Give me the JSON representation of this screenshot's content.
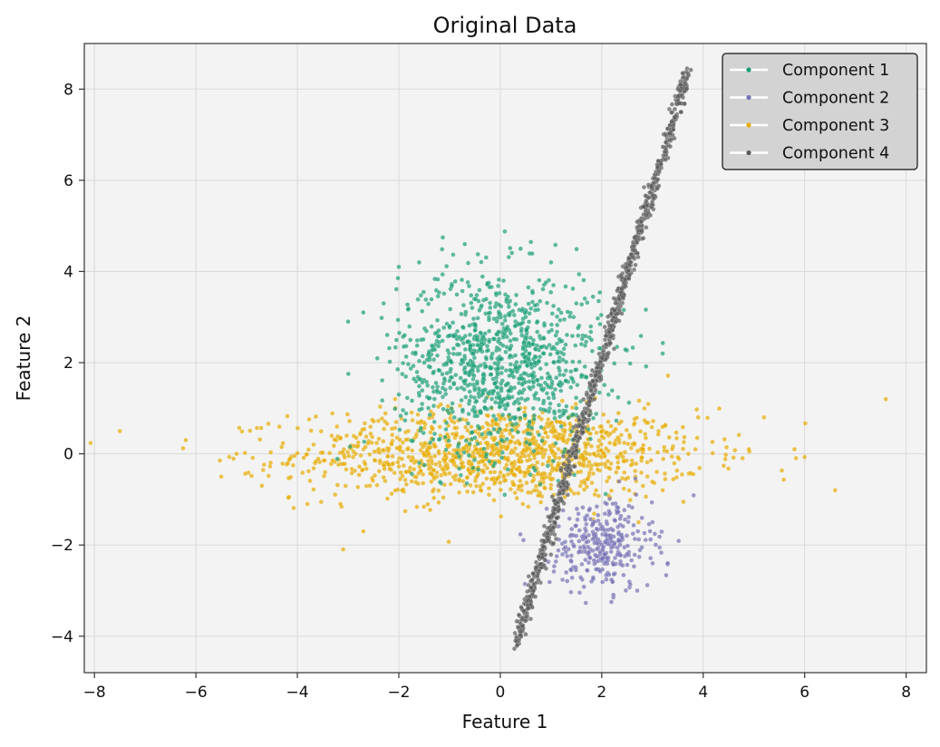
{
  "chart_data": {
    "type": "scatter",
    "title": "Original Data",
    "xlabel": "Feature 1",
    "ylabel": "Feature 2",
    "xlim": [
      -8.2,
      8.4
    ],
    "ylim": [
      -4.8,
      9.0
    ],
    "xticks": [
      -8,
      -6,
      -4,
      -2,
      0,
      2,
      4,
      6,
      8
    ],
    "yticks": [
      -4,
      -2,
      0,
      2,
      4,
      6,
      8
    ],
    "xtick_labels": [
      "−8",
      "−6",
      "−4",
      "−2",
      "0",
      "2",
      "4",
      "6",
      "8"
    ],
    "ytick_labels": [
      "−4",
      "−2",
      "0",
      "2",
      "4",
      "6",
      "8"
    ],
    "grid": true,
    "legend_position": "top-right",
    "series": [
      {
        "name": "Component 1",
        "color": "#1b9e77",
        "distribution": {
          "kind": "gaussian",
          "mean": [
            0.0,
            2.0
          ],
          "std": [
            1.0,
            1.0
          ],
          "n": 1000
        },
        "points": [
          [
            -0.7,
            4.6
          ],
          [
            0.4,
            4.5
          ],
          [
            1.0,
            4.2
          ],
          [
            -2.0,
            4.1
          ],
          [
            -1.6,
            4.2
          ],
          [
            -2.7,
            3.1
          ],
          [
            -3.0,
            2.9
          ],
          [
            -2.3,
            3.3
          ],
          [
            -1.0,
            2.8
          ],
          [
            0.5,
            3.0
          ],
          [
            1.5,
            3.3
          ],
          [
            1.8,
            2.5
          ],
          [
            3.2,
            2.2
          ],
          [
            -1.5,
            2.0
          ],
          [
            -2.0,
            1.3
          ],
          [
            -1.0,
            1.6
          ],
          [
            0.0,
            1.2
          ],
          [
            0.8,
            1.5
          ],
          [
            1.5,
            1.0
          ],
          [
            -1.3,
            0.7
          ],
          [
            -0.5,
            0.9
          ],
          [
            0.3,
            0.8
          ],
          [
            1.2,
            0.6
          ]
        ]
      },
      {
        "name": "Component 2",
        "color": "#7570b3",
        "distribution": {
          "kind": "gaussian",
          "mean": [
            2.0,
            -2.0
          ],
          "std": [
            0.5,
            0.5
          ],
          "n": 300
        },
        "points": [
          [
            1.3,
            -2.6
          ],
          [
            2.7,
            -3.0
          ],
          [
            3.3,
            -2.4
          ],
          [
            3.0,
            -1.5
          ],
          [
            2.1,
            -1.1
          ],
          [
            1.5,
            -1.8
          ],
          [
            1.8,
            -2.8
          ],
          [
            2.5,
            -2.2
          ]
        ]
      },
      {
        "name": "Component 3",
        "color": "#e6ab02",
        "distribution": {
          "kind": "gaussian",
          "mean": [
            0.0,
            0.0
          ],
          "std": [
            2.0,
            0.5
          ],
          "n": 1200
        },
        "points": [
          [
            -7.5,
            0.5
          ],
          [
            -6.2,
            0.3
          ],
          [
            -5.5,
            -0.5
          ],
          [
            -5.2,
            0.0
          ],
          [
            -2.7,
            -1.7
          ],
          [
            7.6,
            1.2
          ],
          [
            6.6,
            -0.8
          ],
          [
            5.8,
            0.1
          ],
          [
            5.2,
            0.8
          ],
          [
            4.9,
            0.1
          ],
          [
            3.2,
            -0.8
          ],
          [
            -3.8,
            -1.1
          ],
          [
            -4.7,
            -0.7
          ],
          [
            3.9,
            0.8
          ]
        ]
      },
      {
        "name": "Component 4",
        "color": "#5a5a5a",
        "distribution": {
          "kind": "linear_band",
          "x_range": [
            0.3,
            3.7
          ],
          "slope": 3.7,
          "intercept": -5.3,
          "noise": 0.14,
          "n": 900
        },
        "points": [
          [
            0.3,
            -4.1
          ],
          [
            0.4,
            -3.9
          ],
          [
            3.7,
            8.35
          ],
          [
            3.5,
            8.0
          ]
        ]
      }
    ]
  }
}
